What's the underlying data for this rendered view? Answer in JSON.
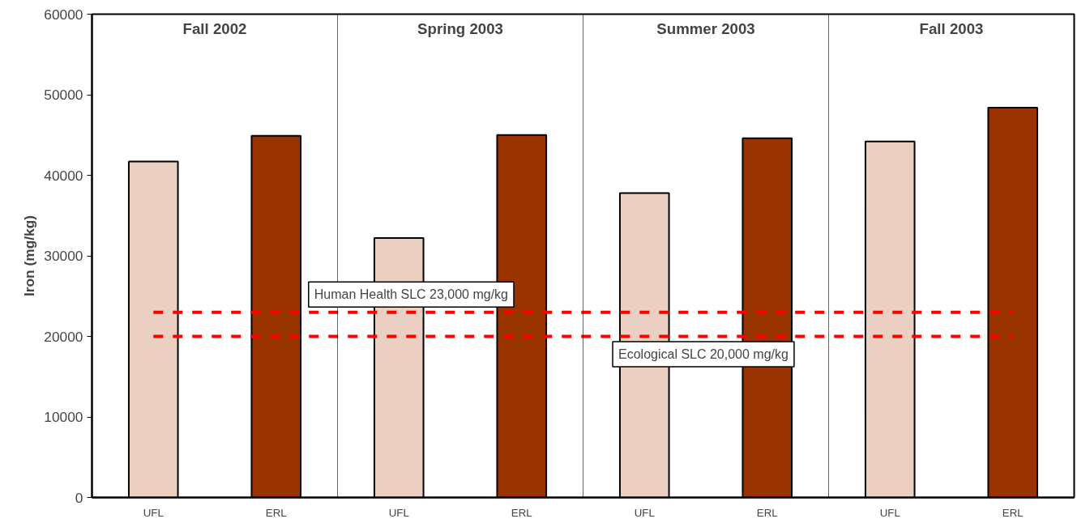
{
  "chart_data": {
    "type": "bar",
    "ylabel": "Iron (mg/kg)",
    "categories": [
      "UFL",
      "ERL",
      "UFL",
      "ERL",
      "UFL",
      "ERL",
      "UFL",
      "ERL"
    ],
    "values": [
      41700,
      44900,
      32200,
      45000,
      37800,
      44600,
      44200,
      48400
    ],
    "colors": [
      "#ebcfc1",
      "#993300",
      "#ebcfc1",
      "#993300",
      "#ebcfc1",
      "#993300",
      "#ebcfc1",
      "#993300"
    ],
    "ylim": [
      0,
      60000
    ],
    "yticks": [
      0,
      10000,
      20000,
      30000,
      40000,
      50000,
      60000
    ],
    "annotations": [
      "Fall 2002",
      "Spring 2003",
      "Summer 2003",
      "Fall 2003"
    ],
    "ref_lines": [
      {
        "axis": "y",
        "value": 23000,
        "label": "Human Health SLC 23,000 mg/kg",
        "color": "#ff0000",
        "line_style": "dashed"
      },
      {
        "axis": "y",
        "value": 20000,
        "label": "Ecological SLC 20,000 mg/kg",
        "color": "#ff0000",
        "line_style": "dashed"
      }
    ],
    "grid": false
  }
}
